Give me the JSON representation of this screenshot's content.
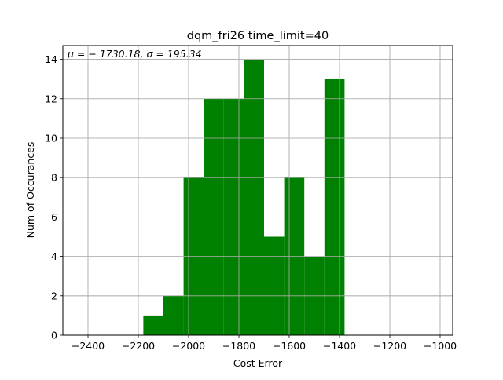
{
  "chart_data": {
    "type": "bar",
    "title": "dqm_fri26 time_limit=40",
    "xlabel": "Cost Error",
    "ylabel": "Num of Occurances",
    "annotation": "μ = − 1730.18,  σ = 195.34",
    "xlim": [
      -2500,
      -950
    ],
    "ylim": [
      0,
      14.7
    ],
    "xticks": [
      -2400,
      -2200,
      -2000,
      -1800,
      -1600,
      -1400,
      -1200,
      -1000
    ],
    "xtick_labels": [
      "−2400",
      "−2200",
      "−2000",
      "−1800",
      "−1600",
      "−1400",
      "−1200",
      "−1000"
    ],
    "yticks": [
      0,
      2,
      4,
      6,
      8,
      10,
      12,
      14
    ],
    "ytick_labels": [
      "0",
      "2",
      "4",
      "6",
      "8",
      "10",
      "12",
      "14"
    ],
    "grid": true,
    "bar_color": "#008000",
    "bins": [
      {
        "x0": -2180,
        "x1": -2100,
        "count": 1
      },
      {
        "x0": -2100,
        "x1": -2020,
        "count": 2
      },
      {
        "x0": -2020,
        "x1": -1940,
        "count": 8
      },
      {
        "x0": -1940,
        "x1": -1860,
        "count": 12
      },
      {
        "x0": -1860,
        "x1": -1780,
        "count": 12
      },
      {
        "x0": -1780,
        "x1": -1700,
        "count": 14
      },
      {
        "x0": -1700,
        "x1": -1620,
        "count": 5
      },
      {
        "x0": -1620,
        "x1": -1540,
        "count": 8
      },
      {
        "x0": -1540,
        "x1": -1460,
        "count": 4
      },
      {
        "x0": -1460,
        "x1": -1380,
        "count": 13
      }
    ]
  }
}
